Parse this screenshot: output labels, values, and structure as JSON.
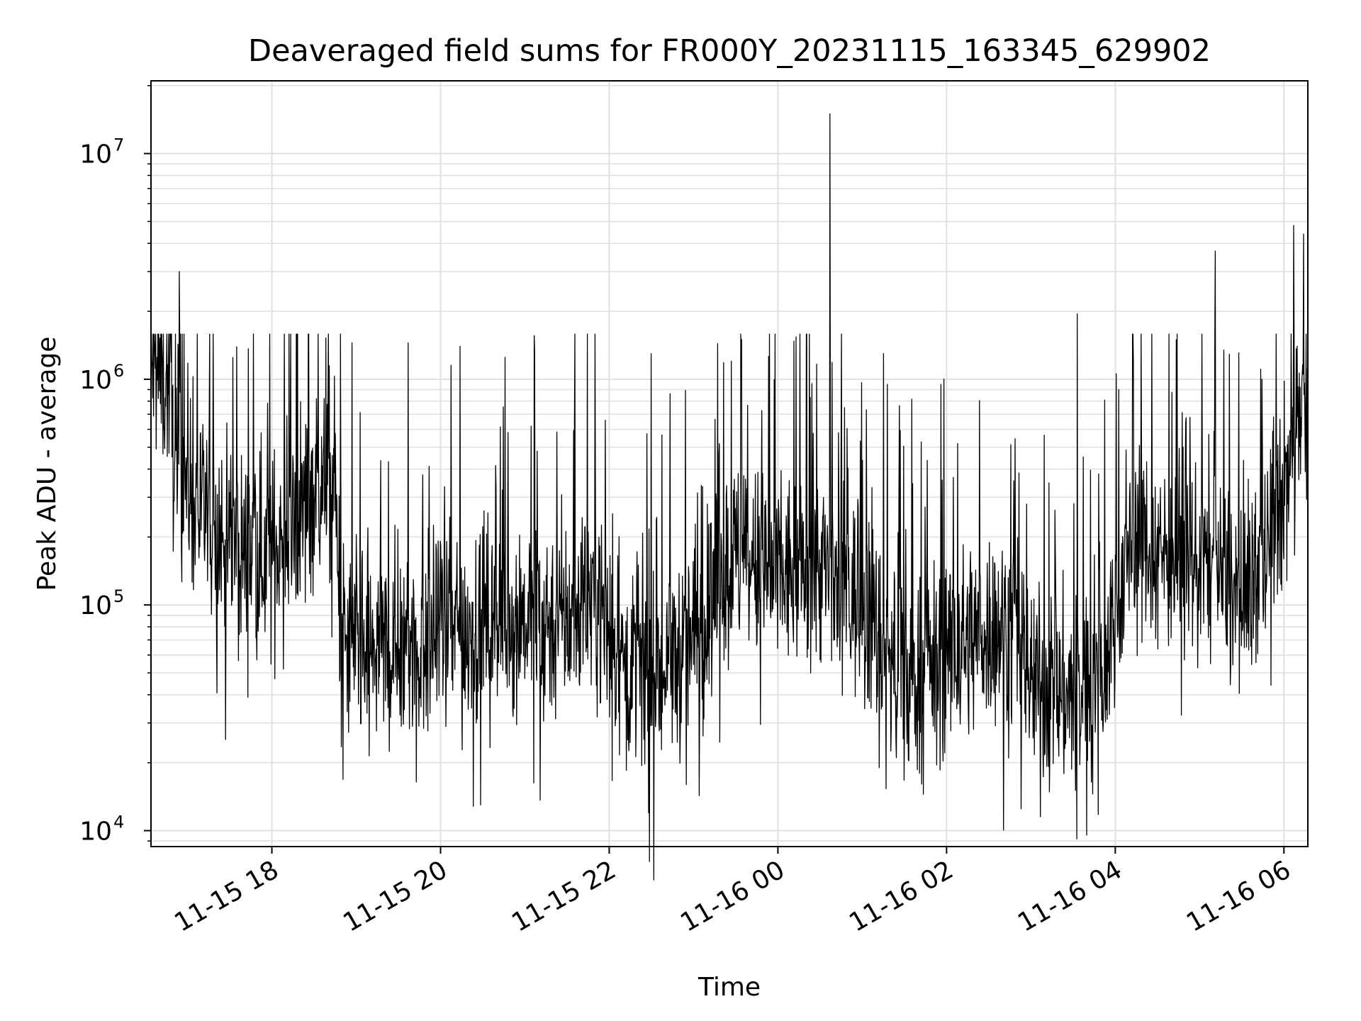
{
  "chart_data": {
    "type": "line",
    "title": "Deaveraged field sums for FR000Y_20231115_163345_629902",
    "xlabel": "Time",
    "ylabel": "Peak ADU - average",
    "yscale": "log",
    "xlim": [
      "2023-11-15 16:34",
      "2023-11-16 06:17"
    ],
    "ylim": [
      8500,
      21000000
    ],
    "grid": true,
    "x_ticks": [
      {
        "value": "2023-11-15 18:00",
        "label": "11-15 18"
      },
      {
        "value": "2023-11-15 20:00",
        "label": "11-15 20"
      },
      {
        "value": "2023-11-15 22:00",
        "label": "11-15 22"
      },
      {
        "value": "2023-11-16 00:00",
        "label": "11-16 00"
      },
      {
        "value": "2023-11-16 02:00",
        "label": "11-16 02"
      },
      {
        "value": "2023-11-16 04:00",
        "label": "11-16 04"
      },
      {
        "value": "2023-11-16 06:00",
        "label": "11-16 06"
      }
    ],
    "y_ticks": [
      {
        "value": 10000,
        "base": "10",
        "exp": "4"
      },
      {
        "value": 100000,
        "base": "10",
        "exp": "5"
      },
      {
        "value": 1000000,
        "base": "10",
        "exp": "6"
      },
      {
        "value": 10000000,
        "base": "10",
        "exp": "7"
      }
    ],
    "series": [
      {
        "color": "#000000",
        "baseline": [
          {
            "x": "2023-11-15 16:34",
            "y": 1100000
          },
          {
            "x": "2023-11-15 16:48",
            "y": 1000000
          },
          {
            "x": "2023-11-15 16:50",
            "y": 500000
          },
          {
            "x": "2023-11-15 17:05",
            "y": 300000
          },
          {
            "x": "2023-11-15 17:20",
            "y": 200000
          },
          {
            "x": "2023-11-15 17:40",
            "y": 170000
          },
          {
            "x": "2023-11-15 18:00",
            "y": 170000
          },
          {
            "x": "2023-11-15 18:15",
            "y": 200000
          },
          {
            "x": "2023-11-15 18:30",
            "y": 330000
          },
          {
            "x": "2023-11-15 18:45",
            "y": 350000
          },
          {
            "x": "2023-11-15 18:48",
            "y": 70000
          },
          {
            "x": "2023-11-15 19:00",
            "y": 60000
          },
          {
            "x": "2023-11-15 19:30",
            "y": 65000
          },
          {
            "x": "2023-11-15 20:00",
            "y": 70000
          },
          {
            "x": "2023-11-15 20:30",
            "y": 85000
          },
          {
            "x": "2023-11-15 21:00",
            "y": 90000
          },
          {
            "x": "2023-11-15 21:30",
            "y": 85000
          },
          {
            "x": "2023-11-15 21:50",
            "y": 120000
          },
          {
            "x": "2023-11-15 22:05",
            "y": 60000
          },
          {
            "x": "2023-11-15 22:30",
            "y": 45000
          },
          {
            "x": "2023-11-15 23:00",
            "y": 70000
          },
          {
            "x": "2023-11-15 23:30",
            "y": 160000
          },
          {
            "x": "2023-11-16 00:00",
            "y": 130000
          },
          {
            "x": "2023-11-16 00:30",
            "y": 150000
          },
          {
            "x": "2023-11-16 01:00",
            "y": 100000
          },
          {
            "x": "2023-11-16 01:30",
            "y": 45000
          },
          {
            "x": "2023-11-16 02:00",
            "y": 60000
          },
          {
            "x": "2023-11-16 02:30",
            "y": 80000
          },
          {
            "x": "2023-11-16 02:50",
            "y": 80000
          },
          {
            "x": "2023-11-16 03:00",
            "y": 45000
          },
          {
            "x": "2023-11-16 03:30",
            "y": 40000
          },
          {
            "x": "2023-11-16 03:50",
            "y": 45000
          },
          {
            "x": "2023-11-16 04:10",
            "y": 200000
          },
          {
            "x": "2023-11-16 04:40",
            "y": 170000
          },
          {
            "x": "2023-11-16 05:10",
            "y": 150000
          },
          {
            "x": "2023-11-16 05:30",
            "y": 100000
          },
          {
            "x": "2023-11-16 05:50",
            "y": 200000
          },
          {
            "x": "2023-11-16 06:05",
            "y": 400000
          },
          {
            "x": "2023-11-16 06:10",
            "y": 900000
          },
          {
            "x": "2023-11-16 06:17",
            "y": 900000
          }
        ],
        "spikes": [
          {
            "x": "2023-11-15 16:54",
            "y": 3000000
          },
          {
            "x": "2023-11-15 18:57",
            "y": 1450000
          },
          {
            "x": "2023-11-15 19:37",
            "y": 1450000
          },
          {
            "x": "2023-11-15 20:14",
            "y": 1400000
          },
          {
            "x": "2023-11-15 21:07",
            "y": 1350000
          },
          {
            "x": "2023-11-15 22:30",
            "y": 1300000
          },
          {
            "x": "2023-11-16 00:37",
            "y": 15000000
          },
          {
            "x": "2023-11-16 01:15",
            "y": 1300000
          },
          {
            "x": "2023-11-16 03:33",
            "y": 1950000
          },
          {
            "x": "2023-11-16 05:11",
            "y": 3700000
          },
          {
            "x": "2023-11-16 06:07",
            "y": 4800000
          },
          {
            "x": "2023-11-16 06:14",
            "y": 4400000
          }
        ],
        "dips": [
          {
            "x": "2023-11-15 22:28",
            "y": 12000
          },
          {
            "x": "2023-11-15 22:55",
            "y": 16000
          },
          {
            "x": "2023-11-16 01:12",
            "y": 19000
          },
          {
            "x": "2023-11-16 02:53",
            "y": 12500
          },
          {
            "x": "2023-11-16 03:48",
            "y": 11800
          },
          {
            "x": "2023-11-15 19:32",
            "y": 29000
          }
        ],
        "n_points": 2700
      }
    ]
  }
}
